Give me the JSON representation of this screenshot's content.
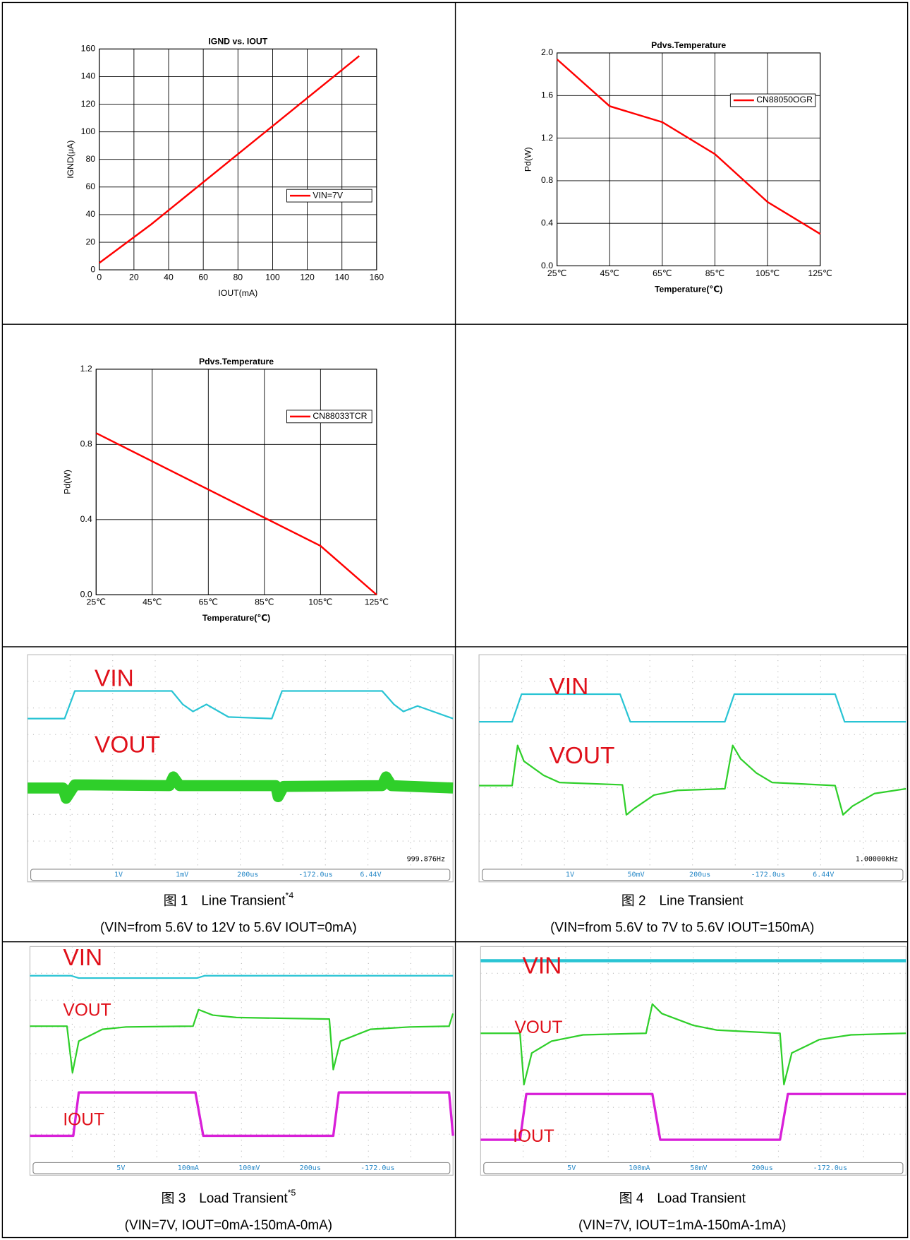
{
  "chart_data": [
    {
      "type": "line",
      "title": "IGND vs. IOUT",
      "xlabel": "IOUT(mA)",
      "ylabel": "IGND(μA)",
      "x": [
        0,
        30,
        150
      ],
      "series": [
        {
          "name": "VIN=7V",
          "color": "#ff0000",
          "values": [
            5,
            33,
            155
          ]
        }
      ],
      "xlim": [
        0,
        160
      ],
      "xticks": [
        0,
        20,
        40,
        60,
        80,
        100,
        120,
        140,
        160
      ],
      "ylim": [
        0,
        160
      ],
      "yticks": [
        0,
        20,
        40,
        60,
        80,
        100,
        120,
        140,
        160
      ],
      "grid": true,
      "legend": "right"
    },
    {
      "type": "line",
      "title": "Pdvs.Temperature",
      "xlabel": "Temperature(℃)",
      "ylabel": "Pd(W)",
      "x": [
        25,
        45,
        65,
        85,
        105,
        125
      ],
      "series": [
        {
          "name": "CN88050OGR",
          "color": "#ff0000",
          "values": [
            1.94,
            1.5,
            1.35,
            1.05,
            0.6,
            0.3
          ]
        }
      ],
      "xlim": [
        25,
        125
      ],
      "xticks": [
        {
          "value": 25,
          "label": "25℃"
        },
        {
          "value": 45,
          "label": "45℃"
        },
        {
          "value": 65,
          "label": "65℃"
        },
        {
          "value": 85,
          "label": "85℃"
        },
        {
          "value": 105,
          "label": "105℃"
        },
        {
          "value": 125,
          "label": "125℃"
        }
      ],
      "ylim": [
        0,
        2
      ],
      "yticks": [
        {
          "value": 0,
          "label": "0.0"
        },
        0.4,
        0.8,
        1.2,
        1.6,
        {
          "value": 2,
          "label": "2.0"
        }
      ],
      "grid": true,
      "legend": "upper right"
    },
    {
      "type": "line",
      "title": "Pdvs.Temperature",
      "xlabel": "Temperature(℃)",
      "ylabel": "Pd(W)",
      "x": [
        25,
        105,
        125
      ],
      "series": [
        {
          "name": "CN88033TCR",
          "color": "#ff0000",
          "values": [
            0.86,
            0.26,
            0
          ]
        }
      ],
      "xlim": [
        25,
        125
      ],
      "xticks": [
        {
          "value": 25,
          "label": "25℃"
        },
        {
          "value": 45,
          "label": "45℃"
        },
        {
          "value": 65,
          "label": "65℃"
        },
        {
          "value": 85,
          "label": "85℃"
        },
        {
          "value": 105,
          "label": "105℃"
        },
        {
          "value": 125,
          "label": "125℃"
        }
      ],
      "ylim": [
        0,
        1.2
      ],
      "yticks": [
        {
          "value": 0,
          "label": "0.0"
        },
        0.4,
        0.8,
        1.2
      ],
      "grid": true,
      "legend": "upper right"
    }
  ],
  "figures": [
    {
      "labels": [
        "VIN",
        "VOUT"
      ],
      "readouts": [
        "999.876Hz",
        "1V",
        "1mV",
        "200us",
        "-172.0us",
        "6.44V"
      ],
      "caption": "图 1　Line Transient",
      "caption_note": "*4",
      "conditions": "(VIN=from 5.6V to 12V to 5.6V IOUT=0mA)"
    },
    {
      "labels": [
        "VIN",
        "VOUT"
      ],
      "readouts": [
        "1.00000kHz",
        "1V",
        "50mV",
        "200us",
        "-172.0us",
        "6.44V"
      ],
      "caption": "图 2　Line Transient",
      "conditions": "(VIN=from 5.6V to 7V to 5.6V IOUT=150mA)"
    },
    {
      "labels": [
        "VIN",
        "VOUT",
        "IOUT"
      ],
      "readouts": [
        "5V",
        "100mA",
        "100mV",
        "200us",
        "-172.0us"
      ],
      "caption": "图 3　Load Transient",
      "caption_note": "*5",
      "conditions": "(VIN=7V, IOUT=0mA-150mA-0mA)"
    },
    {
      "labels": [
        "VIN",
        "VOUT",
        "IOUT"
      ],
      "readouts": [
        "5V",
        "100mA",
        "50mV",
        "200us",
        "-172.0us"
      ],
      "caption": "图 4　Load Transient",
      "conditions": "(VIN=7V, IOUT=1mA-150mA-1mA)"
    }
  ]
}
